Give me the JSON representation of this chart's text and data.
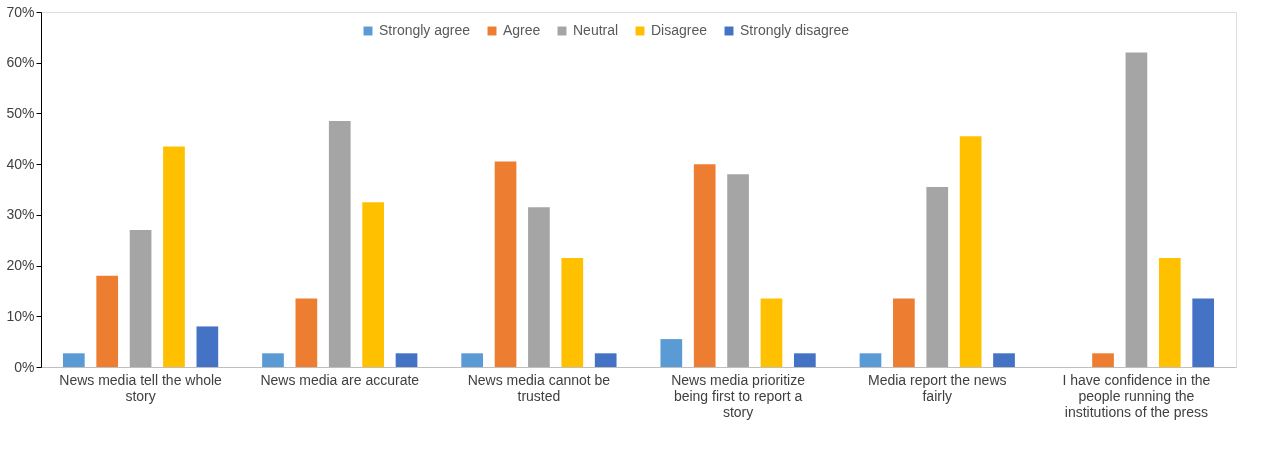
{
  "chart_data": {
    "type": "bar",
    "categories": [
      "News media tell the whole story",
      "News media are accurate",
      "News media cannot be trusted",
      "News media prioritize being first to report a story",
      "Media report the news fairly",
      "I have confidence in the people running the institutions of the press"
    ],
    "series": [
      {
        "name": "Strongly agree",
        "color": "#5b9bd5",
        "values": [
          2.7,
          2.7,
          2.7,
          5.5,
          2.7,
          null
        ]
      },
      {
        "name": "Agree",
        "color": "#ed7d31",
        "values": [
          18,
          13.5,
          40.5,
          40,
          13.5,
          2.7
        ]
      },
      {
        "name": "Neutral",
        "color": "#a5a5a5",
        "values": [
          27,
          48.5,
          31.5,
          38,
          35.5,
          62
        ]
      },
      {
        "name": "Disagree",
        "color": "#ffc000",
        "values": [
          43.5,
          32.5,
          21.5,
          13.5,
          45.5,
          21.5
        ]
      },
      {
        "name": "Strongly disagree",
        "color": "#4472c4",
        "values": [
          8,
          2.7,
          2.7,
          2.7,
          2.7,
          13.5
        ]
      }
    ],
    "ylim": [
      0,
      70
    ],
    "yticks": [
      {
        "value": 0,
        "label": "0%"
      },
      {
        "value": 10,
        "label": "10%"
      },
      {
        "value": 20,
        "label": "20%"
      },
      {
        "value": 30,
        "label": "30%"
      },
      {
        "value": 40,
        "label": "40%"
      },
      {
        "value": 50,
        "label": "50%"
      },
      {
        "value": 60,
        "label": "60%"
      },
      {
        "value": 70,
        "label": "70%"
      }
    ],
    "grid": false,
    "legend": "top"
  }
}
